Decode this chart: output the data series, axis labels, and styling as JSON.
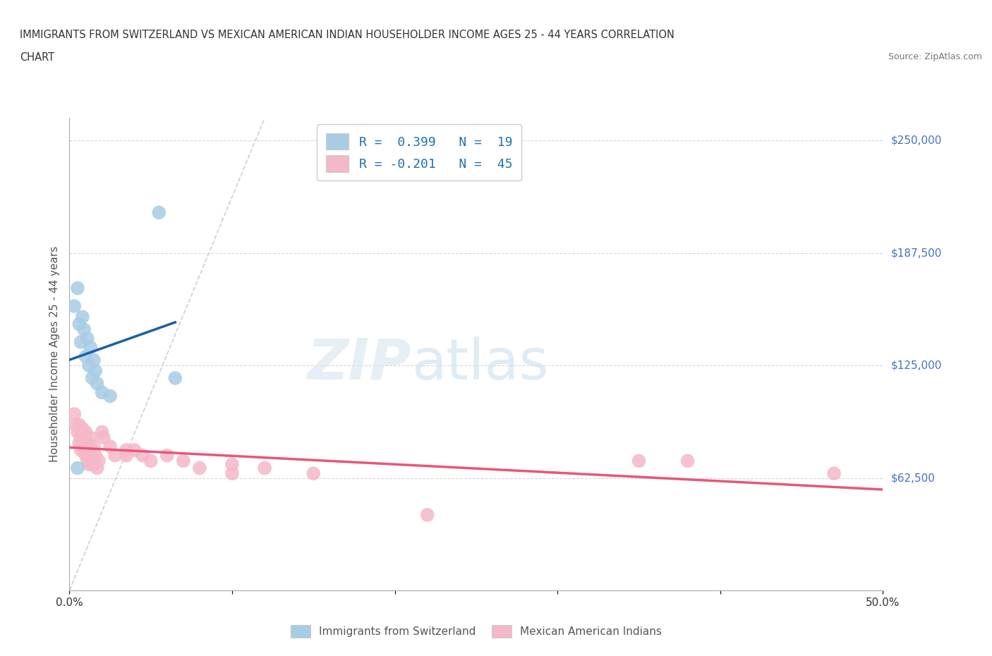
{
  "title_line1": "IMMIGRANTS FROM SWITZERLAND VS MEXICAN AMERICAN INDIAN HOUSEHOLDER INCOME AGES 25 - 44 YEARS CORRELATION",
  "title_line2": "CHART",
  "source_text": "Source: ZipAtlas.com",
  "ylabel": "Householder Income Ages 25 - 44 years",
  "xlim": [
    0.0,
    0.5
  ],
  "ylim": [
    0,
    262500
  ],
  "xtick_positions": [
    0.0,
    0.1,
    0.2,
    0.3,
    0.4,
    0.5
  ],
  "ytick_positions": [
    0,
    62500,
    125000,
    187500,
    250000
  ],
  "ytick_labels": [
    "",
    "$62,500",
    "$125,000",
    "$187,500",
    "$250,000"
  ],
  "watermark_zip": "ZIP",
  "watermark_atlas": "atlas",
  "legend_r1": "R =  0.399   N =  19",
  "legend_r2": "R = -0.201   N =  45",
  "blue_color": "#a8cce4",
  "pink_color": "#f4b8c8",
  "blue_line_color": "#1a5fa8",
  "pink_line_color": "#e8567a",
  "blue_scatter": [
    [
      0.003,
      158000
    ],
    [
      0.005,
      168000
    ],
    [
      0.006,
      148000
    ],
    [
      0.007,
      138000
    ],
    [
      0.008,
      152000
    ],
    [
      0.009,
      145000
    ],
    [
      0.01,
      130000
    ],
    [
      0.011,
      140000
    ],
    [
      0.012,
      125000
    ],
    [
      0.013,
      135000
    ],
    [
      0.014,
      118000
    ],
    [
      0.015,
      128000
    ],
    [
      0.016,
      122000
    ],
    [
      0.017,
      115000
    ],
    [
      0.02,
      110000
    ],
    [
      0.025,
      108000
    ],
    [
      0.055,
      210000
    ],
    [
      0.065,
      118000
    ],
    [
      0.005,
      68000
    ]
  ],
  "pink_scatter": [
    [
      0.003,
      98000
    ],
    [
      0.004,
      92000
    ],
    [
      0.005,
      88000
    ],
    [
      0.006,
      92000
    ],
    [
      0.006,
      82000
    ],
    [
      0.007,
      85000
    ],
    [
      0.007,
      78000
    ],
    [
      0.008,
      90000
    ],
    [
      0.008,
      82000
    ],
    [
      0.009,
      78000
    ],
    [
      0.01,
      88000
    ],
    [
      0.01,
      80000
    ],
    [
      0.01,
      75000
    ],
    [
      0.011,
      82000
    ],
    [
      0.011,
      72000
    ],
    [
      0.012,
      78000
    ],
    [
      0.012,
      70000
    ],
    [
      0.013,
      85000
    ],
    [
      0.013,
      78000
    ],
    [
      0.014,
      72000
    ],
    [
      0.015,
      80000
    ],
    [
      0.015,
      70000
    ],
    [
      0.016,
      75000
    ],
    [
      0.017,
      68000
    ],
    [
      0.018,
      72000
    ],
    [
      0.02,
      88000
    ],
    [
      0.021,
      85000
    ],
    [
      0.025,
      80000
    ],
    [
      0.028,
      75000
    ],
    [
      0.035,
      78000
    ],
    [
      0.035,
      75000
    ],
    [
      0.04,
      78000
    ],
    [
      0.045,
      75000
    ],
    [
      0.05,
      72000
    ],
    [
      0.06,
      75000
    ],
    [
      0.07,
      72000
    ],
    [
      0.08,
      68000
    ],
    [
      0.1,
      70000
    ],
    [
      0.1,
      65000
    ],
    [
      0.12,
      68000
    ],
    [
      0.15,
      65000
    ],
    [
      0.35,
      72000
    ],
    [
      0.38,
      72000
    ],
    [
      0.47,
      65000
    ],
    [
      0.22,
      42000
    ]
  ],
  "grid_color": "#cccccc",
  "background_color": "#ffffff"
}
